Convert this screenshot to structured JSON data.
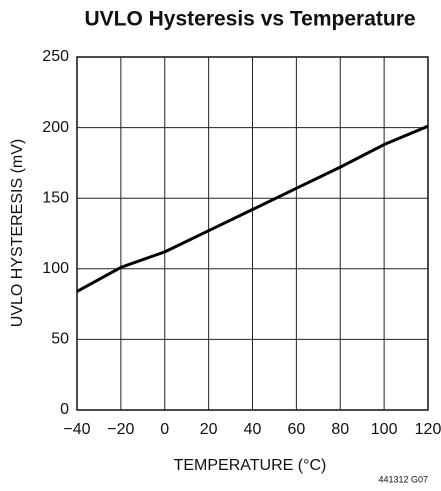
{
  "chart_data": {
    "type": "line",
    "title": "UVLO Hysteresis vs Temperature",
    "x_label": "TEMPERATURE (°C)",
    "y_label": "UVLO HYSTERESIS (mV)",
    "note": "441312 G07",
    "x": [
      -40,
      -20,
      0,
      20,
      40,
      60,
      80,
      100,
      120
    ],
    "series": [
      {
        "name": "UVLO Hysteresis",
        "color": "#000000",
        "values": [
          84,
          101,
          112,
          127,
          142,
          157,
          172,
          188,
          201
        ]
      }
    ],
    "xlim": [
      -40,
      120
    ],
    "xticks": [
      {
        "value": -40,
        "label": "−40"
      },
      {
        "value": -20,
        "label": "−20"
      },
      0,
      20,
      40,
      60,
      80,
      100,
      120
    ],
    "ylim": [
      0,
      250
    ],
    "yticks": [
      0,
      50,
      100,
      150,
      200,
      250
    ],
    "grid": true
  }
}
